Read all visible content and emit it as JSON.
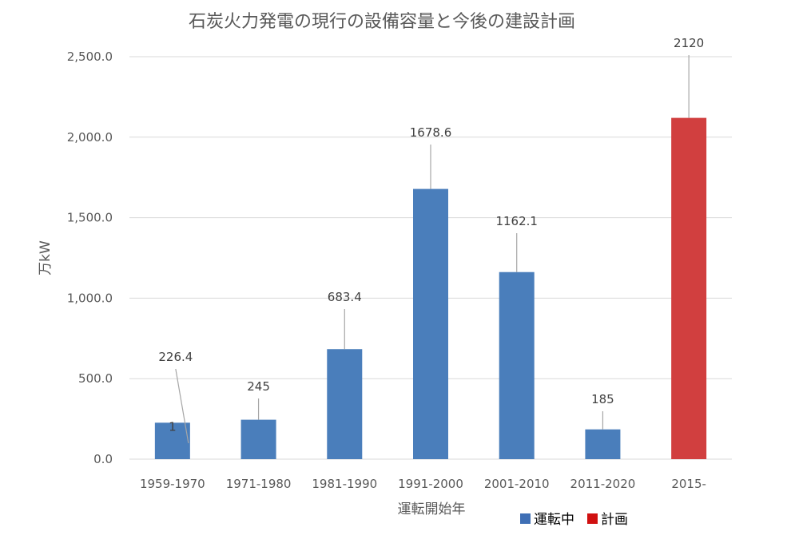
{
  "chart_data": {
    "type": "bar",
    "title": "石炭火力発電の現行の設備容量と今後の建設計画",
    "xlabel": "運転開始年",
    "ylabel": "万kW",
    "ylim": [
      0,
      2500
    ],
    "yticks": [
      0,
      500,
      1000,
      1500,
      2000,
      2500
    ],
    "ytick_labels": [
      "0.0",
      "500.0",
      "1,000.0",
      "1,500.0",
      "2,000.0",
      "2,500.0"
    ],
    "grid": true,
    "categories": [
      "1959-1970",
      "1971-1980",
      "1981-1990",
      "1991-2000",
      "2001-2010",
      "2011-2020",
      "2015-"
    ],
    "values": [
      226.4,
      245,
      683.4,
      1678.6,
      1162.1,
      185,
      2120
    ],
    "data_labels": [
      "226.4",
      "245",
      "683.4",
      "1678.6",
      "1162.1",
      "185",
      "2120"
    ],
    "bar_series": [
      "運転中",
      "運転中",
      "運転中",
      "運転中",
      "運転中",
      "運転中",
      "計画"
    ],
    "extra_label": {
      "text": "1",
      "category": "1959-1970"
    },
    "legend": {
      "position": "bottom-right",
      "items": [
        {
          "name": "運転中",
          "color": "#4a7ebb",
          "swatch": "#3f6fb5"
        },
        {
          "name": "計画",
          "color": "#d13f3f",
          "swatch": "#d01010"
        }
      ]
    }
  }
}
